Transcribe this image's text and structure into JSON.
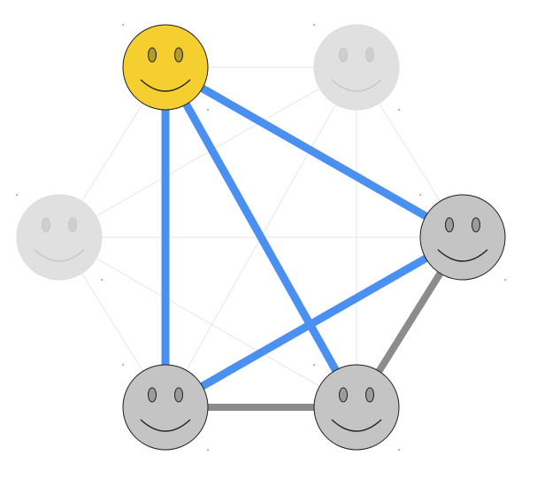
{
  "diagram": {
    "nodes": [
      {
        "id": "top-left",
        "state": "highlighted",
        "fill": "#f5cf2f"
      },
      {
        "id": "top-right",
        "state": "faded",
        "fill": "#e0e0e0"
      },
      {
        "id": "middle-left",
        "state": "faded",
        "fill": "#e0e0e0"
      },
      {
        "id": "middle-right",
        "state": "active",
        "fill": "#c4c4c4"
      },
      {
        "id": "bottom-left",
        "state": "active",
        "fill": "#c4c4c4"
      },
      {
        "id": "bottom-right",
        "state": "active",
        "fill": "#c4c4c4"
      }
    ],
    "edges": [
      {
        "from": "top-left",
        "to": "bottom-left",
        "kind": "highlighted"
      },
      {
        "from": "top-left",
        "to": "bottom-right",
        "kind": "highlighted"
      },
      {
        "from": "top-left",
        "to": "middle-right",
        "kind": "highlighted"
      },
      {
        "from": "middle-right",
        "to": "bottom-left",
        "kind": "highlighted"
      },
      {
        "from": "middle-right",
        "to": "bottom-right",
        "kind": "active"
      },
      {
        "from": "bottom-left",
        "to": "bottom-right",
        "kind": "active"
      },
      {
        "from": "top-left",
        "to": "top-right",
        "kind": "faint"
      },
      {
        "from": "top-left",
        "to": "middle-left",
        "kind": "faint"
      },
      {
        "from": "top-right",
        "to": "middle-left",
        "kind": "faint"
      },
      {
        "from": "top-right",
        "to": "middle-right",
        "kind": "faint"
      },
      {
        "from": "top-right",
        "to": "bottom-left",
        "kind": "faint"
      },
      {
        "from": "top-right",
        "to": "bottom-right",
        "kind": "faint"
      },
      {
        "from": "middle-left",
        "to": "middle-right",
        "kind": "faint"
      },
      {
        "from": "middle-left",
        "to": "bottom-left",
        "kind": "faint"
      },
      {
        "from": "middle-left",
        "to": "bottom-right",
        "kind": "faint"
      }
    ],
    "colors": {
      "highlighted_edge": "#4a90f0",
      "active_edge": "#8c8c8c",
      "faint_edge": "#e6e6e6"
    }
  }
}
